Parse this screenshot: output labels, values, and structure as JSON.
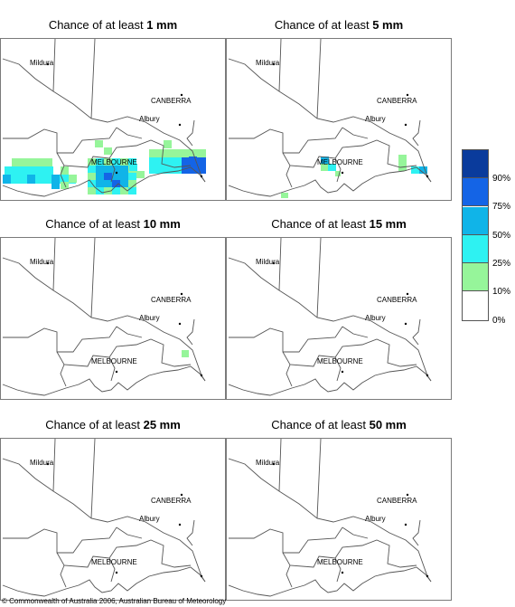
{
  "panels": [
    {
      "title_prefix": "Chance of at least ",
      "amount": "1 mm",
      "level": 1
    },
    {
      "title_prefix": "Chance of at least ",
      "amount": "5 mm",
      "level": 2
    },
    {
      "title_prefix": "Chance of at least ",
      "amount": "10 mm",
      "level": 3
    },
    {
      "title_prefix": "Chance of at least ",
      "amount": "15 mm",
      "level": 0
    },
    {
      "title_prefix": "Chance of at least ",
      "amount": "25 mm",
      "level": 0
    },
    {
      "title_prefix": "Chance of at least ",
      "amount": "50 mm",
      "level": 0
    }
  ],
  "places": {
    "mildura": "Mildura",
    "canberra": "CANBERRA",
    "albury": "Albury",
    "melbourne": "MELBOURNE"
  },
  "legend": {
    "labels": [
      "90%",
      "75%",
      "50%",
      "25%",
      "10%",
      "0%"
    ],
    "colors": [
      "#0a3b9c",
      "#1464e6",
      "#10b4e8",
      "#2ef2f2",
      "#96f59a",
      "#ffffff"
    ]
  },
  "colors": {
    "land_lines": "#555555",
    "green": "#96f59a",
    "cyan": "#2ef2f2",
    "sky": "#10b4e8",
    "blue": "#1464e6"
  },
  "copyright": "© Commonwealth of Australia 2006, Australian Bureau of Meteorology"
}
